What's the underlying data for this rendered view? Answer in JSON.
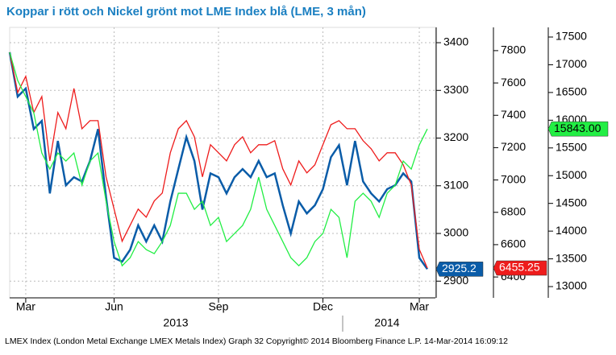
{
  "chart_data": {
    "type": "line",
    "title": "Koppar i rött och Nickel grönt mot LME Index blå (LME, 3 mån)",
    "footer": "LMEX Index (London Metal Exchange LMEX Metals Index) Graph 32  Copyright© 2014 Bloomberg Finance L.P.  14-Mar-2014 16:09:12",
    "year_labels": [
      "2013",
      "2014"
    ],
    "categories": [
      null,
      null,
      "Mar",
      null,
      null,
      null,
      null,
      null,
      null,
      null,
      null,
      null,
      null,
      "Jun",
      null,
      null,
      null,
      null,
      null,
      null,
      null,
      null,
      null,
      null,
      null,
      null,
      "Sep",
      null,
      null,
      null,
      null,
      null,
      null,
      null,
      null,
      null,
      null,
      null,
      null,
      "Dec",
      null,
      null,
      null,
      null,
      null,
      null,
      null,
      null,
      null,
      null,
      null,
      "Mar",
      null
    ],
    "ylim": [
      2865,
      3422
    ],
    "yticks": [
      2900,
      3000,
      3100,
      3200,
      3300,
      3400
    ],
    "y2lim": [
      6271,
      7914
    ],
    "y2ticks": [
      6400,
      6600,
      6800,
      7000,
      7200,
      7400,
      7600,
      7800
    ],
    "y3lim": [
      12797,
      17587
    ],
    "y3ticks": [
      13000,
      13500,
      14000,
      14500,
      15000,
      15500,
      16000,
      16500,
      17000,
      17500
    ],
    "grid": true,
    "series": [
      {
        "name": "LMEX Index",
        "color": "#0a5ca8",
        "axis": "y",
        "values": [
          3380,
          3287,
          3304,
          3219,
          3236,
          3084,
          3194,
          3101,
          3118,
          3109,
          3152,
          3219,
          3076,
          2949,
          2941,
          2966,
          3017,
          2983,
          3017,
          2983,
          3067,
          3135,
          3202,
          3152,
          3050,
          3126,
          3118,
          3084,
          3118,
          3135,
          3118,
          3152,
          3118,
          3126,
          3059,
          3000,
          3067,
          3042,
          3059,
          3093,
          3160,
          3185,
          3101,
          3194,
          3109,
          3084,
          3067,
          3093,
          3101,
          3126,
          3109,
          2949,
          2925.2
        ],
        "value_labels": [
          null,
          null,
          null,
          null,
          null,
          null,
          null,
          null,
          null,
          null,
          null,
          null,
          null,
          null,
          null,
          null,
          null,
          null,
          null,
          null,
          null,
          null,
          null,
          null,
          null,
          null,
          null,
          null,
          null,
          null,
          null,
          null,
          null,
          null,
          null,
          null,
          null,
          null,
          null,
          null,
          null,
          null,
          null,
          null,
          null,
          null,
          null,
          null,
          null,
          null,
          null,
          null,
          "2925.2"
        ]
      },
      {
        "name": "Koppar",
        "color": "#ee1c1c",
        "axis": "y2",
        "values": [
          7790,
          7541,
          7641,
          7417,
          7516,
          7118,
          7417,
          7317,
          7566,
          7317,
          7367,
          7367,
          7019,
          6820,
          6621,
          6720,
          6820,
          6770,
          6870,
          6919,
          7168,
          7317,
          7367,
          7267,
          7019,
          7218,
          7168,
          7118,
          7218,
          7267,
          7168,
          7218,
          7218,
          7243,
          7069,
          6969,
          7118,
          7044,
          7094,
          7218,
          7342,
          7367,
          7317,
          7317,
          7243,
          7193,
          7118,
          7168,
          7168,
          7094,
          6969,
          6571,
          6455.25
        ],
        "value_labels": [
          null,
          null,
          null,
          null,
          null,
          null,
          null,
          null,
          null,
          null,
          null,
          null,
          null,
          null,
          null,
          null,
          null,
          null,
          null,
          null,
          null,
          null,
          null,
          null,
          null,
          null,
          null,
          null,
          null,
          null,
          null,
          null,
          null,
          null,
          null,
          null,
          null,
          null,
          null,
          null,
          null,
          null,
          null,
          null,
          null,
          null,
          null,
          null,
          null,
          null,
          null,
          null,
          "6455.25"
        ]
      },
      {
        "name": "Nickel",
        "color": "#22ee44",
        "axis": "y3",
        "values": [
          17224,
          16716,
          16426,
          16135,
          15409,
          15119,
          15409,
          15264,
          15409,
          14828,
          15264,
          15409,
          14538,
          13812,
          13376,
          13521,
          13812,
          13666,
          13594,
          13812,
          14102,
          14683,
          14683,
          14393,
          14538,
          14102,
          14248,
          13812,
          13957,
          14102,
          14393,
          14973,
          14393,
          14102,
          13812,
          13521,
          13376,
          13521,
          13812,
          13957,
          14393,
          14248,
          13521,
          14538,
          14683,
          14538,
          14248,
          14683,
          14828,
          15264,
          15119,
          15554,
          15843
        ],
        "value_labels": [
          null,
          null,
          null,
          null,
          null,
          null,
          null,
          null,
          null,
          null,
          null,
          null,
          null,
          null,
          null,
          null,
          null,
          null,
          null,
          null,
          null,
          null,
          null,
          null,
          null,
          null,
          null,
          null,
          null,
          null,
          null,
          null,
          null,
          null,
          null,
          null,
          null,
          null,
          null,
          null,
          null,
          null,
          null,
          null,
          null,
          null,
          null,
          null,
          null,
          null,
          null,
          null,
          "15843.00"
        ]
      }
    ]
  }
}
